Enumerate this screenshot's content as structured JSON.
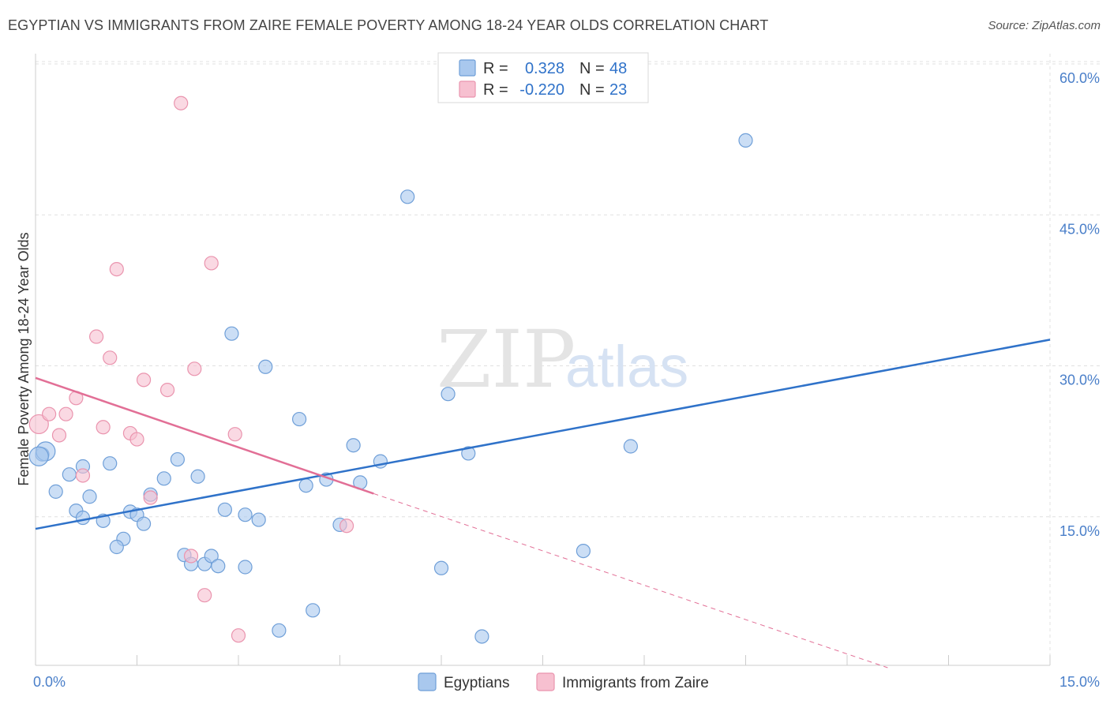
{
  "title": "EGYPTIAN VS IMMIGRANTS FROM ZAIRE FEMALE POVERTY AMONG 18-24 YEAR OLDS CORRELATION CHART",
  "source": "Source: ZipAtlas.com",
  "watermark": {
    "part1": "ZIP",
    "part2": "atlas"
  },
  "colors": {
    "blue_fill": "#a9c8ee",
    "blue_stroke": "#6f9fd8",
    "blue_line": "#2f72c9",
    "pink_fill": "#f7c0d0",
    "pink_stroke": "#ea94ae",
    "pink_line": "#e26f96",
    "grid": "#e0e0e0",
    "tick_text": "#4a7fc9"
  },
  "legend": {
    "rows": [
      {
        "r_label": "R =",
        "r_value": "0.328",
        "n_label": "N =",
        "n_value": "48"
      },
      {
        "r_label": "R =",
        "r_value": "-0.220",
        "n_label": "N =",
        "n_value": "23"
      }
    ]
  },
  "chart_data": {
    "type": "scatter",
    "title": "EGYPTIAN VS IMMIGRANTS FROM ZAIRE FEMALE POVERTY AMONG 18-24 YEAR OLDS CORRELATION CHART",
    "xlabel": "",
    "ylabel": "Female Poverty Among 18-24 Year Olds",
    "xlim": [
      0,
      15
    ],
    "ylim": [
      0,
      60
    ],
    "x_tick_labels": [
      "0.0%",
      "15.0%"
    ],
    "y_ticks": [
      15,
      30,
      45,
      60
    ],
    "y_tick_labels": [
      "15.0%",
      "30.0%",
      "45.0%",
      "60.0%"
    ],
    "grid": true,
    "legend_position": "bottom-center",
    "series": [
      {
        "name": "Egyptians",
        "color_key": "blue",
        "points": [
          [
            0.1,
            21.2
          ],
          [
            0.7,
            20.0
          ],
          [
            0.5,
            19.2
          ],
          [
            0.3,
            17.5
          ],
          [
            0.8,
            17.0
          ],
          [
            0.6,
            15.6
          ],
          [
            0.7,
            14.9
          ],
          [
            1.0,
            14.6
          ],
          [
            1.1,
            20.3
          ],
          [
            1.3,
            12.8
          ],
          [
            1.2,
            12.0
          ],
          [
            1.4,
            15.5
          ],
          [
            1.5,
            15.2
          ],
          [
            1.6,
            14.3
          ],
          [
            1.7,
            17.2
          ],
          [
            1.9,
            18.8
          ],
          [
            2.1,
            20.7
          ],
          [
            2.2,
            11.2
          ],
          [
            2.3,
            10.3
          ],
          [
            2.4,
            19.0
          ],
          [
            2.5,
            10.3
          ],
          [
            2.6,
            11.1
          ],
          [
            2.7,
            10.1
          ],
          [
            2.8,
            15.7
          ],
          [
            2.9,
            33.2
          ],
          [
            3.1,
            10.0
          ],
          [
            3.1,
            15.2
          ],
          [
            3.3,
            14.7
          ],
          [
            3.4,
            29.9
          ],
          [
            3.6,
            3.7
          ],
          [
            3.9,
            24.7
          ],
          [
            4.0,
            18.1
          ],
          [
            4.1,
            5.7
          ],
          [
            4.3,
            18.7
          ],
          [
            4.5,
            14.2
          ],
          [
            4.7,
            22.1
          ],
          [
            4.8,
            18.4
          ],
          [
            5.1,
            20.5
          ],
          [
            5.5,
            46.8
          ],
          [
            6.0,
            9.9
          ],
          [
            6.1,
            27.2
          ],
          [
            6.4,
            21.3
          ],
          [
            6.6,
            3.1
          ],
          [
            8.1,
            11.6
          ],
          [
            8.8,
            22.0
          ],
          [
            10.5,
            52.4
          ],
          [
            0.15,
            21.5
          ],
          [
            0.05,
            21.0
          ]
        ]
      },
      {
        "name": "Immigrants from Zaire",
        "color_key": "pink",
        "points": [
          [
            0.05,
            24.2
          ],
          [
            0.2,
            25.2
          ],
          [
            0.35,
            23.1
          ],
          [
            0.45,
            25.2
          ],
          [
            0.6,
            26.8
          ],
          [
            0.7,
            19.1
          ],
          [
            0.9,
            32.9
          ],
          [
            1.0,
            23.9
          ],
          [
            1.1,
            30.8
          ],
          [
            1.2,
            39.6
          ],
          [
            1.4,
            23.3
          ],
          [
            1.5,
            22.7
          ],
          [
            1.6,
            28.6
          ],
          [
            1.7,
            16.9
          ],
          [
            1.95,
            27.6
          ],
          [
            2.15,
            56.1
          ],
          [
            2.3,
            11.1
          ],
          [
            2.35,
            29.7
          ],
          [
            2.5,
            7.2
          ],
          [
            2.6,
            40.2
          ],
          [
            2.95,
            23.2
          ],
          [
            3.0,
            3.2
          ],
          [
            4.6,
            14.1
          ]
        ]
      }
    ],
    "trendlines": [
      {
        "series": "Egyptians",
        "x": [
          0,
          15
        ],
        "y": [
          13.8,
          32.6
        ],
        "style": "solid"
      },
      {
        "series": "Immigrants from Zaire",
        "x": [
          0,
          5.0
        ],
        "y": [
          28.8,
          17.3
        ],
        "style": "solid"
      },
      {
        "series": "Immigrants from Zaire",
        "x": [
          5.0,
          12.6
        ],
        "y": [
          17.3,
          0.0
        ],
        "style": "dashed"
      }
    ]
  }
}
